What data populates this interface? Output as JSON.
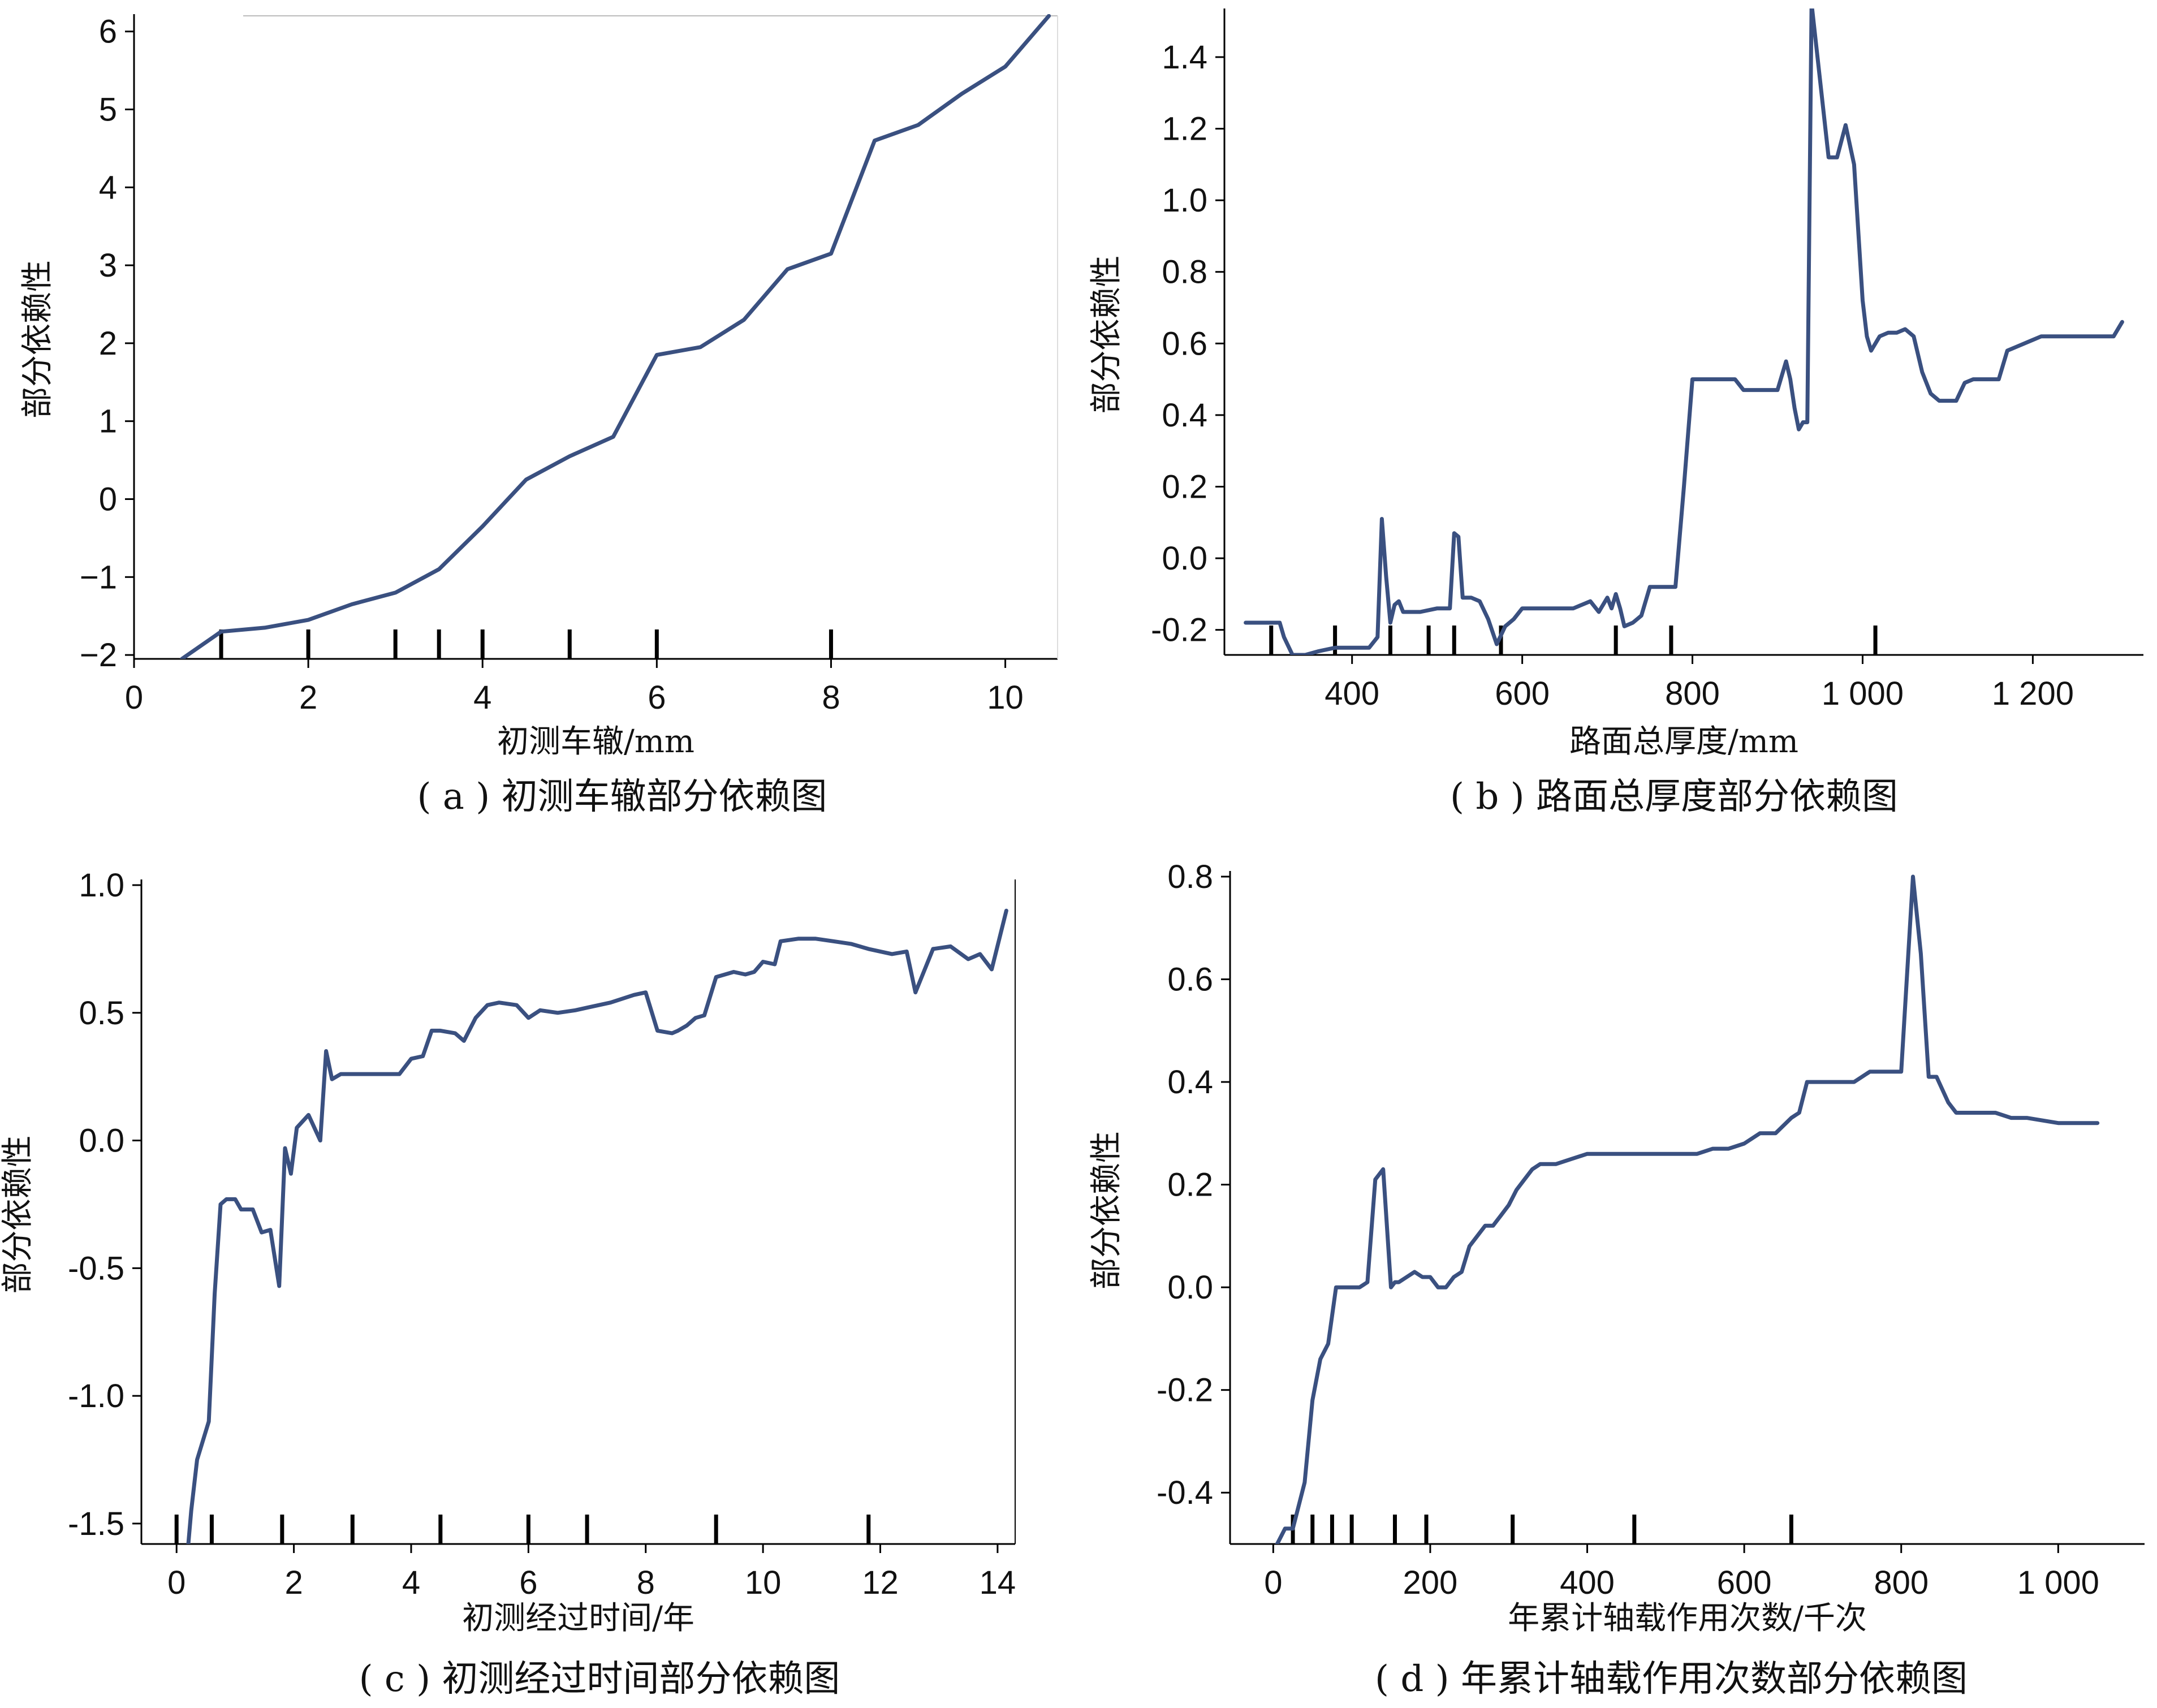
{
  "colors": {
    "line": "#3a5080",
    "axis": "#000000",
    "rug": "#000000",
    "text": "#111111"
  },
  "chart_data": [
    {
      "id": "a",
      "type": "line",
      "caption": "( a ) 初测车辙部分依赖图",
      "xlabel": "初测车辙/mm",
      "ylabel": "部分依赖性",
      "xlim": [
        0,
        10.6
      ],
      "ylim": [
        -2.05,
        6.15
      ],
      "xticks": [
        0,
        2,
        4,
        6,
        8,
        10
      ],
      "xtick_labels": [
        "0",
        "2",
        "4",
        "6",
        "8",
        "10"
      ],
      "yticks": [
        -2,
        -1,
        0,
        1,
        2,
        3,
        4,
        5,
        6
      ],
      "ytick_labels": [
        "−2",
        "−1",
        "0",
        "1",
        "2",
        "3",
        "4",
        "5",
        "6"
      ],
      "rug": [
        1,
        2,
        3,
        3.5,
        4,
        5,
        6,
        8
      ],
      "x": [
        0.55,
        1.0,
        1.5,
        2.0,
        2.5,
        3.0,
        3.5,
        4.0,
        4.5,
        5.0,
        5.5,
        6.0,
        6.5,
        7.0,
        7.5,
        8.0,
        8.5,
        9.0,
        9.5,
        10.0,
        10.5
      ],
      "y": [
        -2.05,
        -1.7,
        -1.65,
        -1.55,
        -1.35,
        -1.2,
        -0.9,
        -0.35,
        0.25,
        0.55,
        0.8,
        1.85,
        1.95,
        2.3,
        2.95,
        3.15,
        4.6,
        4.8,
        5.2,
        5.55,
        6.2
      ]
    },
    {
      "id": "b",
      "type": "line",
      "caption": "( b ) 路面总厚度部分依赖图",
      "xlabel": "路面总厚度/mm",
      "ylabel": "部分依赖性",
      "xlim": [
        250,
        1330
      ],
      "ylim": [
        -0.27,
        1.52
      ],
      "xticks": [
        400,
        600,
        800,
        1000,
        1200
      ],
      "xtick_labels": [
        "400",
        "600",
        "800",
        "1 000",
        "1 200"
      ],
      "yticks": [
        -0.2,
        0.0,
        0.2,
        0.4,
        0.6,
        0.8,
        1.0,
        1.2,
        1.4
      ],
      "ytick_labels": [
        "-0.2",
        "0.0",
        "0.2",
        "0.4",
        "0.6",
        "0.8",
        "1.0",
        "1.2",
        "1.4"
      ],
      "rug": [
        305,
        380,
        445,
        490,
        520,
        575,
        710,
        775,
        1015
      ],
      "x": [
        275,
        300,
        315,
        320,
        330,
        345,
        360,
        380,
        400,
        420,
        430,
        435,
        440,
        445,
        450,
        455,
        460,
        470,
        480,
        500,
        515,
        520,
        525,
        530,
        540,
        550,
        560,
        570,
        580,
        590,
        600,
        620,
        640,
        660,
        680,
        690,
        700,
        705,
        710,
        715,
        720,
        730,
        740,
        750,
        760,
        780,
        790,
        800,
        810,
        820,
        830,
        850,
        860,
        880,
        890,
        900,
        910,
        915,
        920,
        925,
        930,
        935,
        940,
        960,
        970,
        980,
        990,
        1000,
        1005,
        1010,
        1020,
        1030,
        1040,
        1050,
        1060,
        1070,
        1080,
        1090,
        1100,
        1110,
        1120,
        1130,
        1150,
        1160,
        1170,
        1180,
        1200,
        1210,
        1220,
        1230,
        1240,
        1280,
        1295,
        1305
      ],
      "y": [
        -0.18,
        -0.18,
        -0.18,
        -0.22,
        -0.27,
        -0.27,
        -0.26,
        -0.25,
        -0.25,
        -0.25,
        -0.22,
        0.11,
        -0.05,
        -0.18,
        -0.13,
        -0.12,
        -0.15,
        -0.15,
        -0.15,
        -0.14,
        -0.14,
        0.07,
        0.06,
        -0.11,
        -0.11,
        -0.12,
        -0.17,
        -0.24,
        -0.19,
        -0.17,
        -0.14,
        -0.14,
        -0.14,
        -0.14,
        -0.12,
        -0.15,
        -0.11,
        -0.14,
        -0.1,
        -0.14,
        -0.19,
        -0.18,
        -0.16,
        -0.08,
        -0.08,
        -0.08,
        0.2,
        0.5,
        0.5,
        0.5,
        0.5,
        0.5,
        0.47,
        0.47,
        0.47,
        0.47,
        0.55,
        0.5,
        0.42,
        0.36,
        0.38,
        0.38,
        1.55,
        1.12,
        1.12,
        1.21,
        1.1,
        0.72,
        0.62,
        0.58,
        0.62,
        0.63,
        0.63,
        0.64,
        0.62,
        0.52,
        0.46,
        0.44,
        0.44,
        0.44,
        0.49,
        0.5,
        0.5,
        0.5,
        0.58,
        0.59,
        0.61,
        0.62,
        0.62,
        0.62,
        0.62,
        0.62,
        0.62,
        0.66
      ]
    },
    {
      "id": "c",
      "type": "line",
      "caption": "( c ) 初测经过时间部分依赖图",
      "xlabel": "初测经过时间/年",
      "ylabel": "部分依赖性",
      "xlim": [
        -0.6,
        14.3
      ],
      "ylim": [
        -1.58,
        1.0
      ],
      "xticks": [
        0,
        2,
        4,
        6,
        8,
        10,
        12,
        14
      ],
      "xtick_labels": [
        "0",
        "2",
        "4",
        "6",
        "8",
        "10",
        "12",
        "14"
      ],
      "yticks": [
        -1.5,
        -1.0,
        -0.5,
        0.0,
        0.5,
        1.0
      ],
      "ytick_labels": [
        "-1.5",
        "-1.0",
        "-0.5",
        "0.0",
        "0.5",
        "1.0"
      ],
      "rug": [
        0,
        0.6,
        1.8,
        3,
        4.5,
        6,
        7,
        9.2,
        11.8
      ],
      "x": [
        0.2,
        0.25,
        0.35,
        0.55,
        0.65,
        0.75,
        0.85,
        1.0,
        1.1,
        1.3,
        1.45,
        1.6,
        1.75,
        1.85,
        1.95,
        2.05,
        2.25,
        2.45,
        2.55,
        2.65,
        2.8,
        3.0,
        3.4,
        3.8,
        4.0,
        4.2,
        4.35,
        4.5,
        4.75,
        4.9,
        5.1,
        5.3,
        5.5,
        5.8,
        6.0,
        6.2,
        6.5,
        6.8,
        7.0,
        7.4,
        7.8,
        8.0,
        8.2,
        8.45,
        8.55,
        8.7,
        8.85,
        9.0,
        9.2,
        9.5,
        9.7,
        9.85,
        10.0,
        10.2,
        10.3,
        10.6,
        10.9,
        11.2,
        11.5,
        11.8,
        12.2,
        12.45,
        12.6,
        12.9,
        13.2,
        13.5,
        13.7,
        13.9,
        14.15
      ],
      "y": [
        -1.58,
        -1.45,
        -1.25,
        -1.1,
        -0.6,
        -0.25,
        -0.23,
        -0.23,
        -0.27,
        -0.27,
        -0.36,
        -0.35,
        -0.57,
        -0.03,
        -0.13,
        0.05,
        0.1,
        0.0,
        0.35,
        0.24,
        0.26,
        0.26,
        0.26,
        0.26,
        0.32,
        0.33,
        0.43,
        0.43,
        0.42,
        0.39,
        0.48,
        0.53,
        0.54,
        0.53,
        0.48,
        0.51,
        0.5,
        0.51,
        0.52,
        0.54,
        0.57,
        0.58,
        0.43,
        0.42,
        0.43,
        0.45,
        0.48,
        0.49,
        0.64,
        0.66,
        0.65,
        0.66,
        0.7,
        0.69,
        0.78,
        0.79,
        0.79,
        0.78,
        0.77,
        0.75,
        0.73,
        0.74,
        0.58,
        0.75,
        0.76,
        0.71,
        0.73,
        0.67,
        0.9
      ]
    },
    {
      "id": "d",
      "type": "line",
      "caption": "( d ) 年累计轴载作用次数部分依赖图",
      "xlabel": "年累计轴载作用次数/千次",
      "ylabel": "部分依赖性",
      "xlim": [
        -55,
        1110
      ],
      "ylim": [
        -0.5,
        0.8
      ],
      "xticks": [
        0,
        200,
        400,
        600,
        800,
        1000
      ],
      "xtick_labels": [
        "0",
        "200",
        "400",
        "600",
        "800",
        "1 000"
      ],
      "yticks": [
        -0.4,
        -0.2,
        0.0,
        0.2,
        0.4,
        0.6,
        0.8
      ],
      "ytick_labels": [
        "-0.4",
        "-0.2",
        "0.0",
        "0.2",
        "0.4",
        "0.6",
        "0.8"
      ],
      "rug": [
        25,
        50,
        75,
        100,
        155,
        195,
        305,
        460,
        660
      ],
      "x": [
        5,
        15,
        25,
        30,
        40,
        50,
        60,
        70,
        80,
        90,
        100,
        110,
        120,
        130,
        140,
        150,
        155,
        160,
        170,
        180,
        190,
        200,
        210,
        220,
        230,
        240,
        250,
        260,
        270,
        280,
        290,
        300,
        310,
        320,
        330,
        340,
        350,
        360,
        380,
        400,
        420,
        440,
        460,
        480,
        500,
        520,
        540,
        560,
        580,
        600,
        620,
        640,
        660,
        670,
        680,
        700,
        720,
        740,
        760,
        790,
        800,
        815,
        825,
        835,
        845,
        860,
        870,
        880,
        900,
        920,
        940,
        960,
        1000,
        1030,
        1050
      ],
      "y": [
        -0.5,
        -0.47,
        -0.47,
        -0.44,
        -0.38,
        -0.22,
        -0.14,
        -0.11,
        0.0,
        0.0,
        0.0,
        0.0,
        0.01,
        0.21,
        0.23,
        0.0,
        0.01,
        0.01,
        0.02,
        0.03,
        0.02,
        0.02,
        0.0,
        0.0,
        0.02,
        0.03,
        0.08,
        0.1,
        0.12,
        0.12,
        0.14,
        0.16,
        0.19,
        0.21,
        0.23,
        0.24,
        0.24,
        0.24,
        0.25,
        0.26,
        0.26,
        0.26,
        0.26,
        0.26,
        0.26,
        0.26,
        0.26,
        0.27,
        0.27,
        0.28,
        0.3,
        0.3,
        0.33,
        0.34,
        0.4,
        0.4,
        0.4,
        0.4,
        0.42,
        0.42,
        0.42,
        0.8,
        0.65,
        0.41,
        0.41,
        0.36,
        0.34,
        0.34,
        0.34,
        0.34,
        0.33,
        0.33,
        0.32,
        0.32,
        0.32
      ]
    }
  ]
}
